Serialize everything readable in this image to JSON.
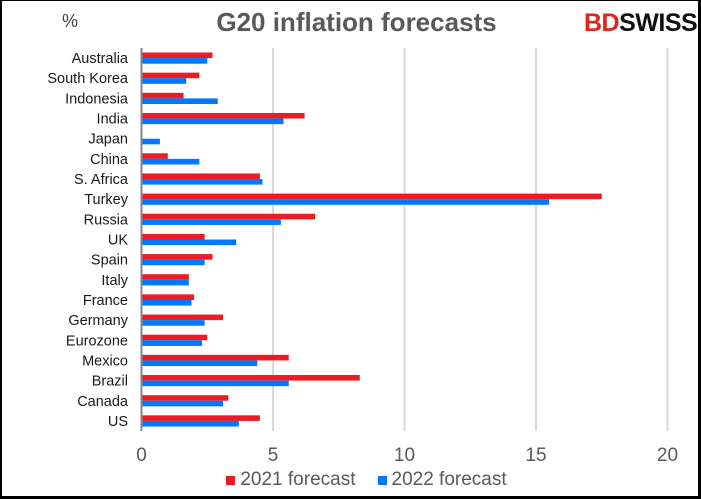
{
  "chart_data": {
    "type": "bar",
    "orientation": "horizontal",
    "title": "G20 inflation forecasts",
    "unit_label": "%",
    "xlabel": "",
    "ylabel": "%",
    "xlim": [
      0,
      20
    ],
    "x_ticks": [
      0,
      5,
      10,
      15,
      20
    ],
    "grid": "vertical",
    "legend_position": "bottom",
    "categories": [
      "Australia",
      "South Korea",
      "Indonesia",
      "India",
      "Japan",
      "China",
      "S. Africa",
      "Turkey",
      "Russia",
      "UK",
      "Spain",
      "Italy",
      "France",
      "Germany",
      "Eurozone",
      "Mexico",
      "Brazil",
      "Canada",
      "US"
    ],
    "series": [
      {
        "name": "2021 forecast",
        "color": "#ED1C24",
        "values": [
          2.7,
          2.2,
          1.6,
          6.2,
          0.0,
          1.0,
          4.5,
          17.5,
          6.6,
          2.4,
          2.7,
          1.8,
          2.0,
          3.1,
          2.5,
          5.6,
          8.3,
          3.3,
          4.5
        ]
      },
      {
        "name": "2022 forecast",
        "color": "#0078FF",
        "values": [
          2.5,
          1.7,
          2.9,
          5.4,
          0.7,
          2.2,
          4.6,
          15.5,
          5.3,
          3.6,
          2.4,
          1.8,
          1.9,
          2.4,
          2.3,
          4.4,
          5.6,
          3.1,
          3.7
        ]
      }
    ]
  },
  "brand": {
    "part1": "BD",
    "part2": "SWISS",
    "accent": "#E2231A"
  }
}
